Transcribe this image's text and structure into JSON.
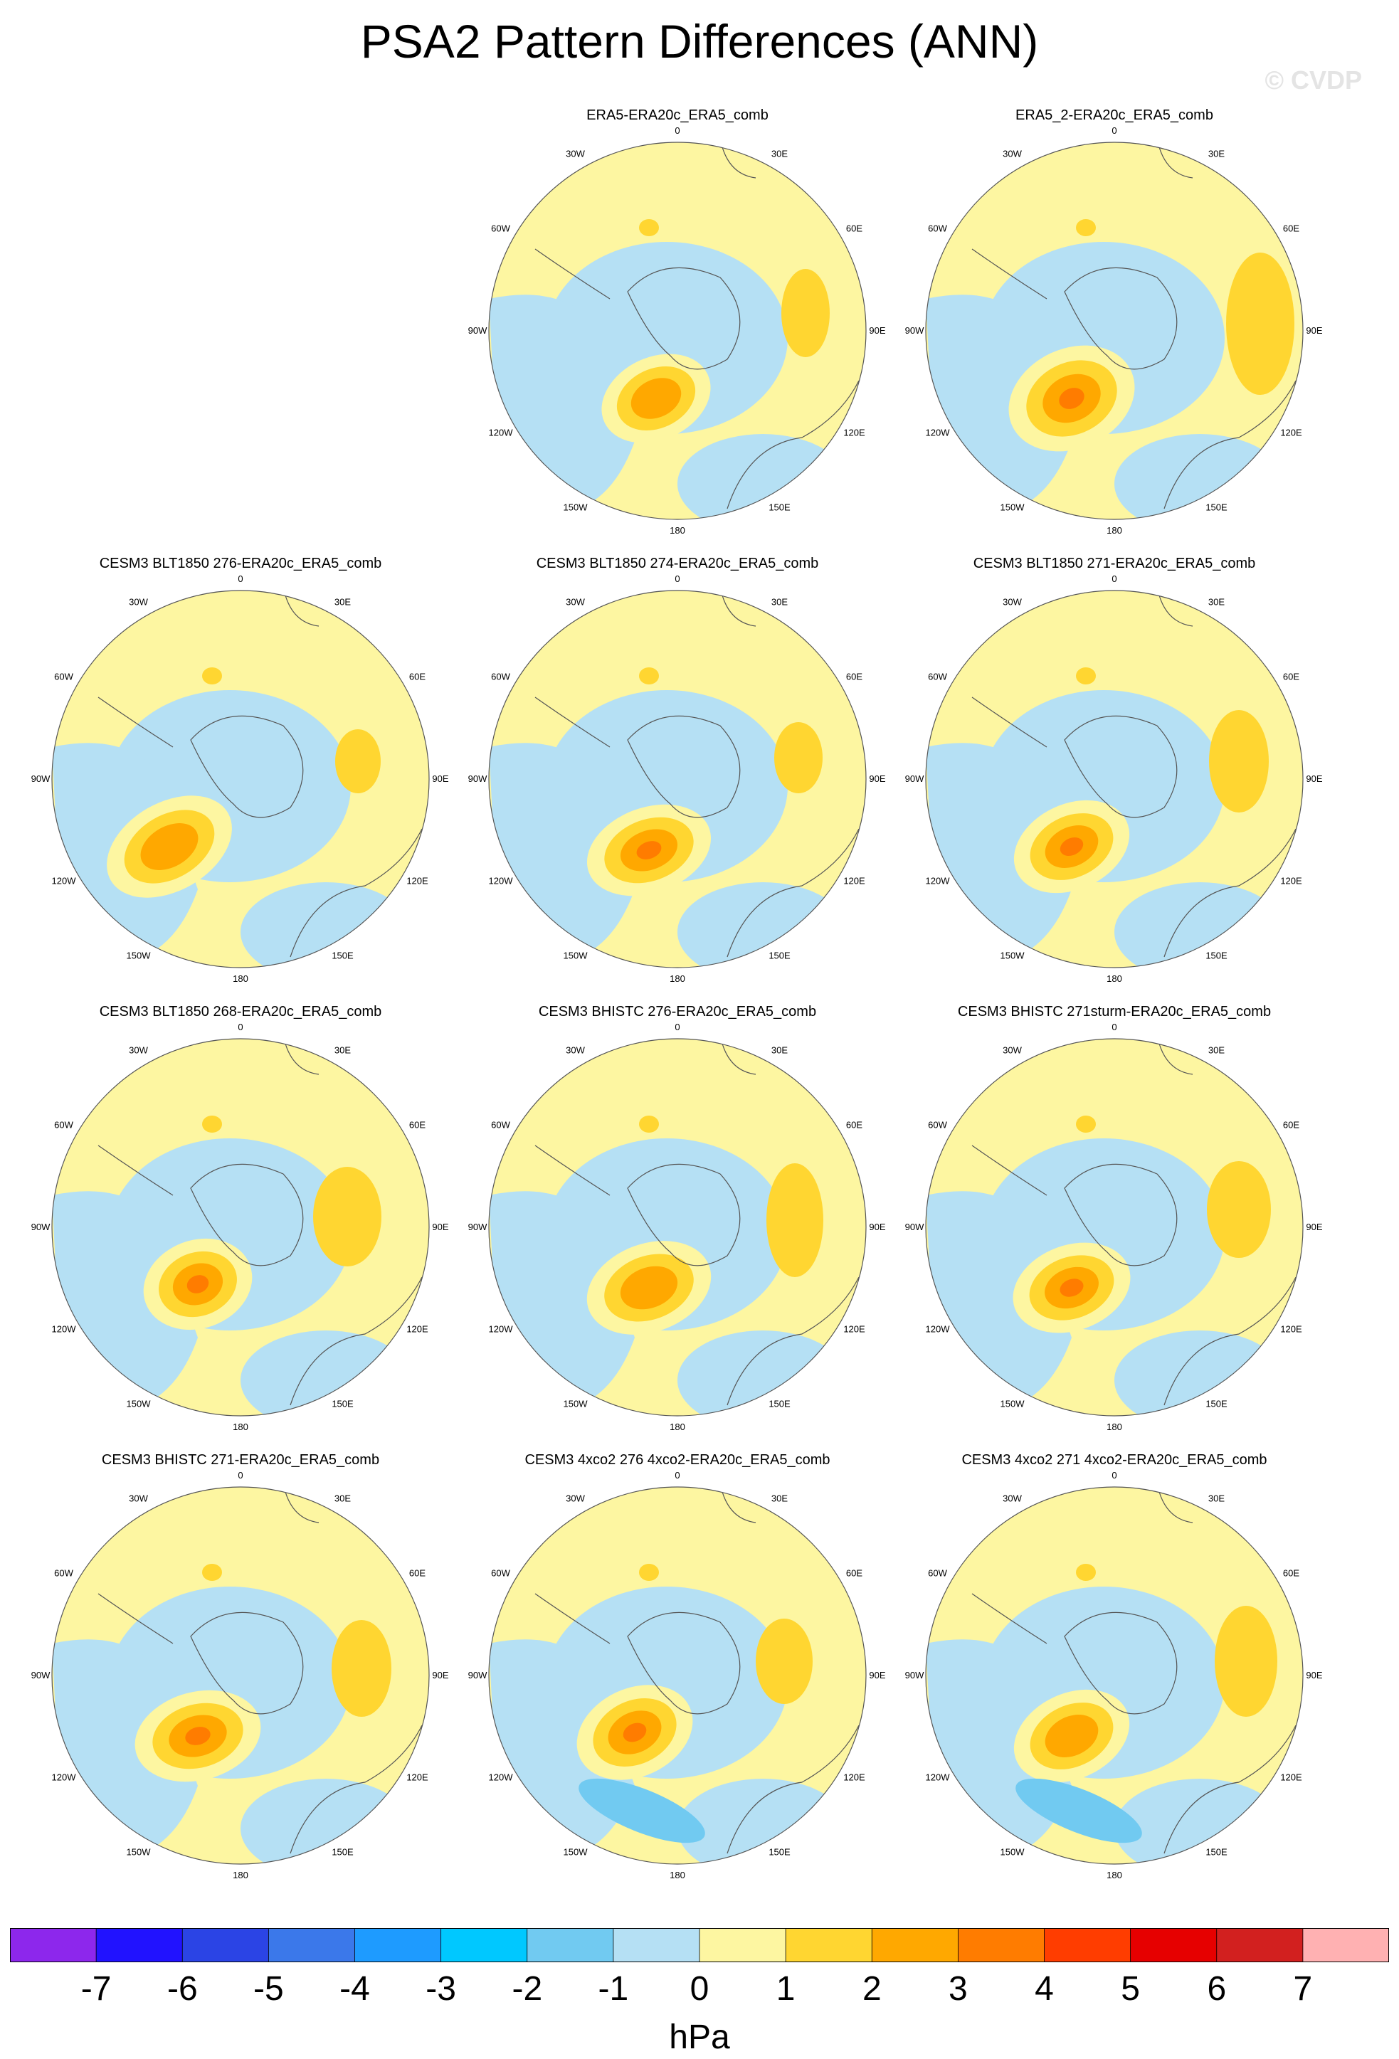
{
  "title": "PSA2 Pattern Differences (ANN)",
  "watermark": "© CVDP",
  "units": "hPa",
  "colorbar": {
    "colors": [
      "#8d27ec",
      "#2112ff",
      "#2b44e5",
      "#3b78ea",
      "#1e9bff",
      "#00c8ff",
      "#71caf1",
      "#b5e0f4",
      "#fdf6a1",
      "#ffd631",
      "#ffa800",
      "#ff7c00",
      "#ff3d00",
      "#e60000",
      "#d2201f",
      "#ffb1b2"
    ],
    "tick_labels": [
      "-7",
      "-6",
      "-5",
      "-4",
      "-3",
      "-2",
      "-1",
      "0",
      "1",
      "2",
      "3",
      "4",
      "5",
      "6",
      "7"
    ]
  },
  "lon_labels": [
    "0",
    "30E",
    "60E",
    "90E",
    "120E",
    "150E",
    "180",
    "150W",
    "120W",
    "90W",
    "60W",
    "30W"
  ],
  "panels": [
    {
      "title": "ERA5-ERA20c_ERA5_comb",
      "row": 0,
      "col": 1
    },
    {
      "title": "ERA5_2-ERA20c_ERA5_comb",
      "row": 0,
      "col": 2
    },
    {
      "title": "CESM3 BLT1850 276-ERA20c_ERA5_comb",
      "row": 1,
      "col": 0
    },
    {
      "title": "CESM3 BLT1850 274-ERA20c_ERA5_comb",
      "row": 1,
      "col": 1
    },
    {
      "title": "CESM3 BLT1850 271-ERA20c_ERA5_comb",
      "row": 1,
      "col": 2
    },
    {
      "title": "CESM3 BLT1850 268-ERA20c_ERA5_comb",
      "row": 2,
      "col": 0
    },
    {
      "title": "CESM3 BHISTC 276-ERA20c_ERA5_comb",
      "row": 2,
      "col": 1
    },
    {
      "title": "CESM3 BHISTC 271sturm-ERA20c_ERA5_comb",
      "row": 2,
      "col": 2
    },
    {
      "title": "CESM3 BHISTC 271-ERA20c_ERA5_comb",
      "row": 3,
      "col": 0
    },
    {
      "title": "CESM3 4xco2 276 4xco2-ERA20c_ERA5_comb",
      "row": 3,
      "col": 1
    },
    {
      "title": "CESM3 4xco2 271 4xco2-ERA20c_ERA5_comb",
      "row": 3,
      "col": 2
    }
  ]
}
